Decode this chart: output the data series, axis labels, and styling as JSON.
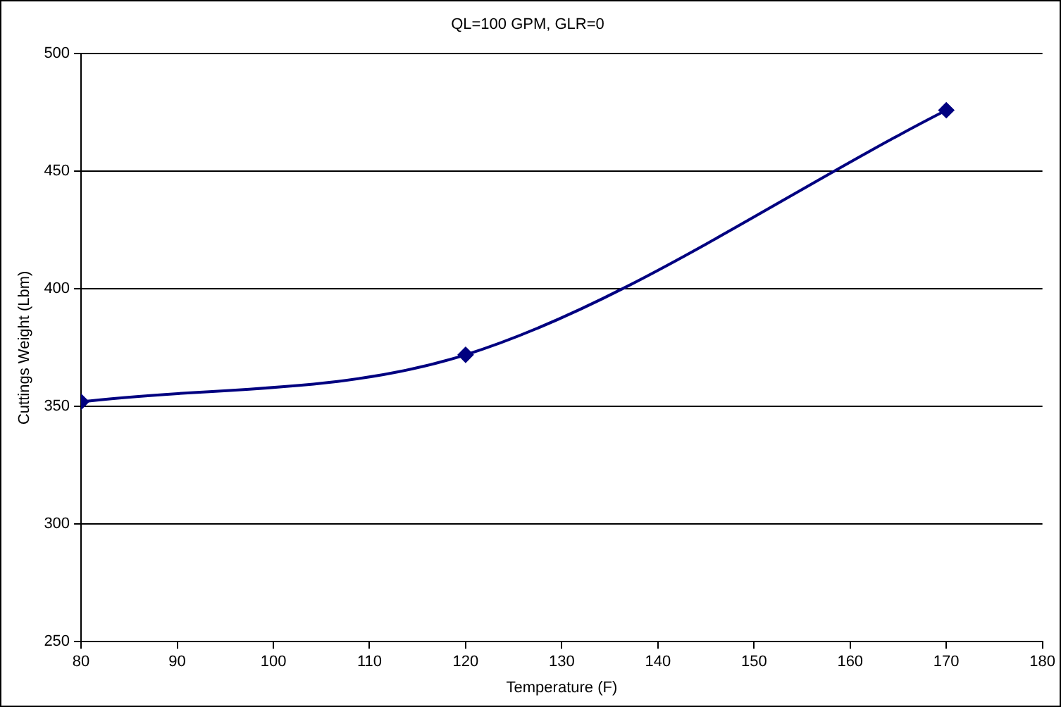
{
  "chart_data": {
    "type": "line",
    "title": "QL=100 GPM, GLR=0",
    "xlabel": "Temperature (F)",
    "ylabel": "Cuttings Weight (Lbm)",
    "x": [
      80,
      120,
      170
    ],
    "series": [
      {
        "color": "#000080",
        "values": [
          352,
          372,
          476
        ]
      }
    ],
    "xlim": [
      80,
      180
    ],
    "xticks": [
      80,
      90,
      100,
      110,
      120,
      130,
      140,
      150,
      160,
      170,
      180
    ],
    "ylim": [
      250,
      500
    ],
    "yticks": [
      250,
      300,
      350,
      400,
      450,
      500
    ],
    "grid": "y",
    "marker": "diamond",
    "line_style": "solid",
    "legend": false
  }
}
